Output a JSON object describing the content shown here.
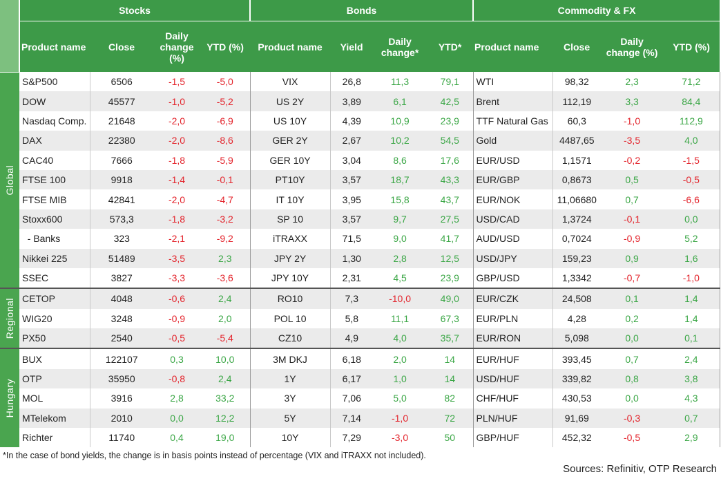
{
  "header": {
    "groups": [
      "Stocks",
      "Bonds",
      "Commodity & FX"
    ],
    "columns": [
      "Product name",
      "Close",
      "Daily change (%)",
      "YTD (%)",
      "Product name",
      "Yield",
      "Daily change*",
      "YTD*",
      "Product name",
      "Close",
      "Daily change (%)",
      "YTD (%)"
    ]
  },
  "sections": [
    {
      "region": "Global",
      "rows": [
        [
          "S&P500",
          "6506",
          "-1,5",
          "-5,0",
          "VIX",
          "26,8",
          "11,3",
          "79,1",
          "WTI",
          "98,32",
          "2,3",
          "71,2"
        ],
        [
          "DOW",
          "45577",
          "-1,0",
          "-5,2",
          "US 2Y",
          "3,89",
          "6,1",
          "42,5",
          "Brent",
          "112,19",
          "3,3",
          "84,4"
        ],
        [
          "Nasdaq Comp.",
          "21648",
          "-2,0",
          "-6,9",
          "US 10Y",
          "4,39",
          "10,9",
          "23,9",
          "TTF Natural Gas",
          "60,3",
          "-1,0",
          "112,9"
        ],
        [
          "DAX",
          "22380",
          "-2,0",
          "-8,6",
          "GER 2Y",
          "2,67",
          "10,2",
          "54,5",
          "Gold",
          "4487,65",
          "-3,5",
          "4,0"
        ],
        [
          "CAC40",
          "7666",
          "-1,8",
          "-5,9",
          "GER 10Y",
          "3,04",
          "8,6",
          "17,6",
          "EUR/USD",
          "1,1571",
          "-0,2",
          "-1,5"
        ],
        [
          "FTSE 100",
          "9918",
          "-1,4",
          "-0,1",
          "PT10Y",
          "3,57",
          "18,7",
          "43,3",
          "EUR/GBP",
          "0,8673",
          "0,5",
          "-0,5"
        ],
        [
          "FTSE MIB",
          "42841",
          "-2,0",
          "-4,7",
          "IT 10Y",
          "3,95",
          "15,8",
          "43,7",
          "EUR/NOK",
          "11,06680",
          "0,7",
          "-6,6"
        ],
        [
          "Stoxx600",
          "573,3",
          "-1,8",
          "-3,2",
          "SP 10",
          "3,57",
          "9,7",
          "27,5",
          "USD/CAD",
          "1,3724",
          "-0,1",
          "0,0"
        ],
        [
          "  - Banks",
          "323",
          "-2,1",
          "-9,2",
          "iTRAXX",
          "71,5",
          "9,0",
          "41,7",
          "AUD/USD",
          "0,7024",
          "-0,9",
          "5,2"
        ],
        [
          "Nikkei 225",
          "51489",
          "-3,5",
          "2,3",
          "JPY 2Y",
          "1,30",
          "2,8",
          "12,5",
          "USD/JPY",
          "159,23",
          "0,9",
          "1,6"
        ],
        [
          "SSEC",
          "3827",
          "-3,3",
          "-3,6",
          "JPY 10Y",
          "2,31",
          "4,5",
          "23,9",
          "GBP/USD",
          "1,3342",
          "-0,7",
          "-1,0"
        ]
      ]
    },
    {
      "region": "Regional",
      "rows": [
        [
          "CETOP",
          "4048",
          "-0,6",
          "2,4",
          "RO10",
          "7,3",
          "-10,0",
          "49,0",
          "EUR/CZK",
          "24,508",
          "0,1",
          "1,4"
        ],
        [
          "WIG20",
          "3248",
          "-0,9",
          "2,0",
          "POL 10",
          "5,8",
          "11,1",
          "67,3",
          "EUR/PLN",
          "4,28",
          "0,2",
          "1,4"
        ],
        [
          "PX50",
          "2540",
          "-0,5",
          "-5,4",
          "CZ10",
          "4,9",
          "4,0",
          "35,7",
          "EUR/RON",
          "5,098",
          "0,0",
          "0,1"
        ]
      ]
    },
    {
      "region": "Hungary",
      "rows": [
        [
          "BUX",
          "122107",
          "0,3",
          "10,0",
          "3M DKJ",
          "6,18",
          "2,0",
          "14",
          "EUR/HUF",
          "393,45",
          "0,7",
          "2,4"
        ],
        [
          "OTP",
          "35950",
          "-0,8",
          "2,4",
          "1Y",
          "6,17",
          "1,0",
          "14",
          "USD/HUF",
          "339,82",
          "0,8",
          "3,8"
        ],
        [
          "MOL",
          "3916",
          "2,8",
          "33,2",
          "3Y",
          "7,06",
          "5,0",
          "82",
          "CHF/HUF",
          "430,53",
          "0,0",
          "4,3"
        ],
        [
          "MTelekom",
          "2010",
          "0,0",
          "12,2",
          "5Y",
          "7,14",
          "-1,0",
          "72",
          "PLN/HUF",
          "91,69",
          "-0,3",
          "0,7"
        ],
        [
          "Richter",
          "11740",
          "0,4",
          "19,0",
          "10Y",
          "7,29",
          "-3,0",
          "50",
          "GBP/HUF",
          "452,32",
          "-0,5",
          "2,9"
        ]
      ]
    }
  ],
  "footnote": "*In the case of bond yields, the change is in basis points instead of percentage (VIX and iTRAXX not included).",
  "sources": "Sources: Refinitiv, OTP Research"
}
